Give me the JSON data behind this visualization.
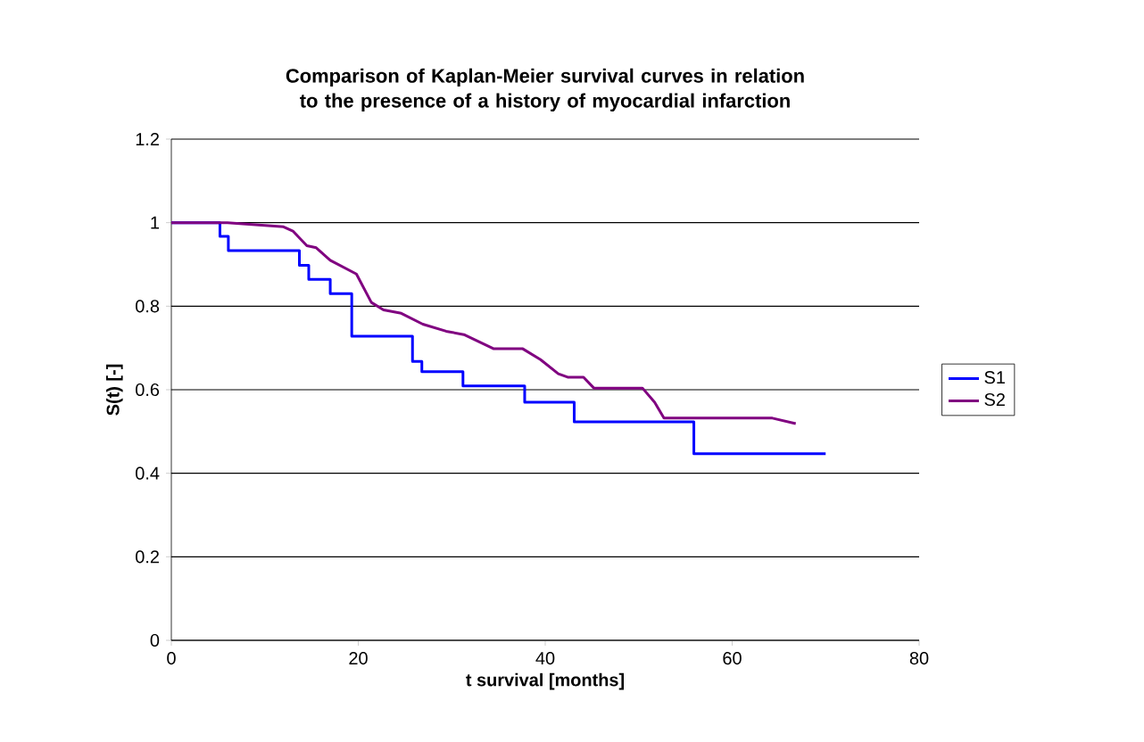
{
  "chart_data": {
    "type": "line",
    "title": "Comparison of Kaplan-Meier survival curves in relation to the presence of a history of myocardial infarction",
    "xlabel": "t survival [months]",
    "ylabel": "S(t) [-]",
    "xlim": [
      0,
      80
    ],
    "xticks": [
      0,
      20,
      40,
      60,
      80
    ],
    "ylim": [
      0,
      1.2
    ],
    "yticks": [
      0,
      0.2,
      0.4,
      0.6,
      0.8,
      1,
      1.2
    ],
    "grid": "y",
    "legend": "right",
    "marker": "none",
    "series": [
      {
        "name": "S1",
        "type": "step",
        "color": "#0000ff",
        "x": [
          0,
          5.2,
          6.1,
          13.7,
          14.7,
          17,
          19.3,
          25.8,
          26.8,
          31.2,
          37.8,
          43.1,
          55.9,
          70
        ],
        "values": [
          1,
          0.967,
          0.933,
          0.898,
          0.864,
          0.83,
          0.728,
          0.668,
          0.643,
          0.609,
          0.57,
          0.523,
          0.447,
          0.447
        ]
      },
      {
        "name": "S2",
        "color": "#800080",
        "x": [
          0,
          6,
          12,
          13,
          14.5,
          15.5,
          17,
          19.8,
          21.4,
          22.7,
          24.6,
          26.9,
          29.4,
          31.3,
          34.5,
          37.6,
          39.5,
          41.4,
          42.4,
          44.1,
          45.2,
          50.4,
          51.7,
          52.7,
          64.3,
          66.8
        ],
        "values": [
          1,
          1,
          0.99,
          0.98,
          0.945,
          0.94,
          0.91,
          0.877,
          0.809,
          0.791,
          0.783,
          0.757,
          0.74,
          0.732,
          0.698,
          0.698,
          0.672,
          0.638,
          0.63,
          0.63,
          0.604,
          0.604,
          0.57,
          0.532,
          0.532,
          0.519
        ]
      }
    ]
  }
}
